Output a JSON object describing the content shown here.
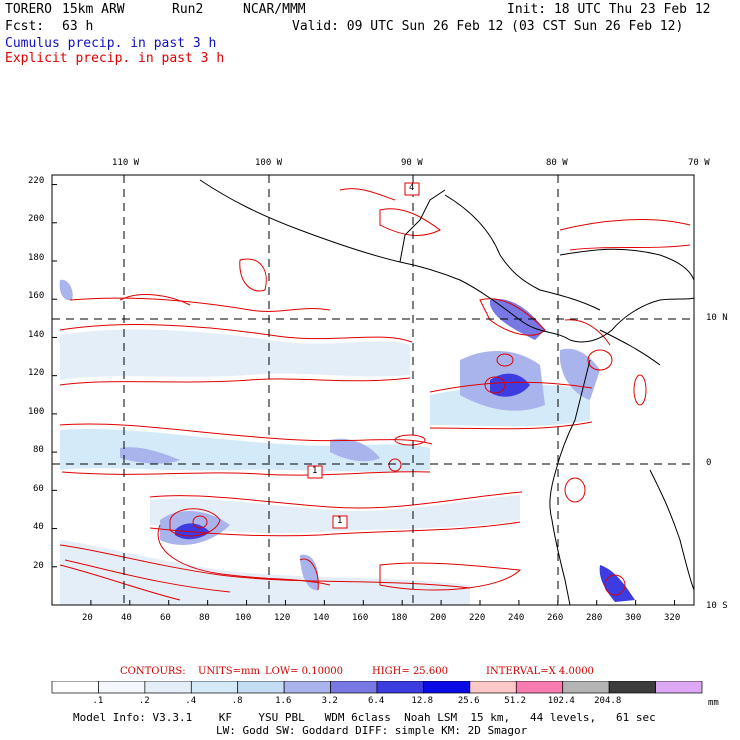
{
  "header": {
    "model": "TORERO",
    "resolution": "15km ARW",
    "run": "Run2",
    "org": "NCAR/MMM",
    "init": "Init: 18 UTC Thu 23 Feb 12",
    "fcst_label": "Fcst:",
    "fcst_value": "63 h",
    "valid": "Valid: 09 UTC Sun 26 Feb 12 (03 CST Sun 26 Feb 12)",
    "field1": "Cumulus precip. in past 3 h",
    "field2": "Explicit precip. in past 3 h"
  },
  "map": {
    "lon_labels": [
      "110 W",
      "100 W",
      "90 W",
      "80 W",
      "70 W"
    ],
    "lat_labels": [
      "10 N",
      "0",
      "10 S"
    ],
    "y_ticks": [
      "220",
      "200",
      "180",
      "160",
      "140",
      "120",
      "100",
      "80",
      "60",
      "40",
      "20"
    ],
    "x_ticks": [
      "20",
      "40",
      "60",
      "80",
      "100",
      "120",
      "140",
      "160",
      "180",
      "200",
      "220",
      "240",
      "260",
      "280",
      "300",
      "320"
    ],
    "x_range": [
      0,
      330
    ],
    "y_range": [
      0,
      225
    ],
    "box_labels": [
      "4",
      "1",
      "1"
    ],
    "colors": {
      "contour": "#e00000",
      "coast": "#000000",
      "grid": "#000000"
    }
  },
  "contours_info": {
    "contours": "CONTOURS:",
    "units": "UNITS=mm",
    "low": "LOW= 0.10000",
    "high": "HIGH= 25.600",
    "interval": "INTERVAL=X 4.0000"
  },
  "colorbar": {
    "labels": [
      ".1",
      ".2",
      ".4",
      ".8",
      "1.6",
      "3.2",
      "6.4",
      "12.8",
      "25.6",
      "51.2",
      "102.4",
      "204.8"
    ],
    "unit": "mm",
    "colors": [
      "#ffffff",
      "#f4f8fc",
      "#e4eef8",
      "#d4eaf8",
      "#c4dcf4",
      "#aab4ec",
      "#7878e4",
      "#3c3ce0",
      "#0a0ae4",
      "#fcc8c8",
      "#f87cb0",
      "#b4b4b4",
      "#3c3c3c",
      "#dca8f4"
    ]
  },
  "footer": {
    "line1": "Model Info: V3.3.1    KF    YSU PBL   WDM 6class  Noah LSM  15 km,   44 levels,   61 sec",
    "line2": "LW: Godd SW: Goddard DIFF: simple KM: 2D Smagor"
  }
}
